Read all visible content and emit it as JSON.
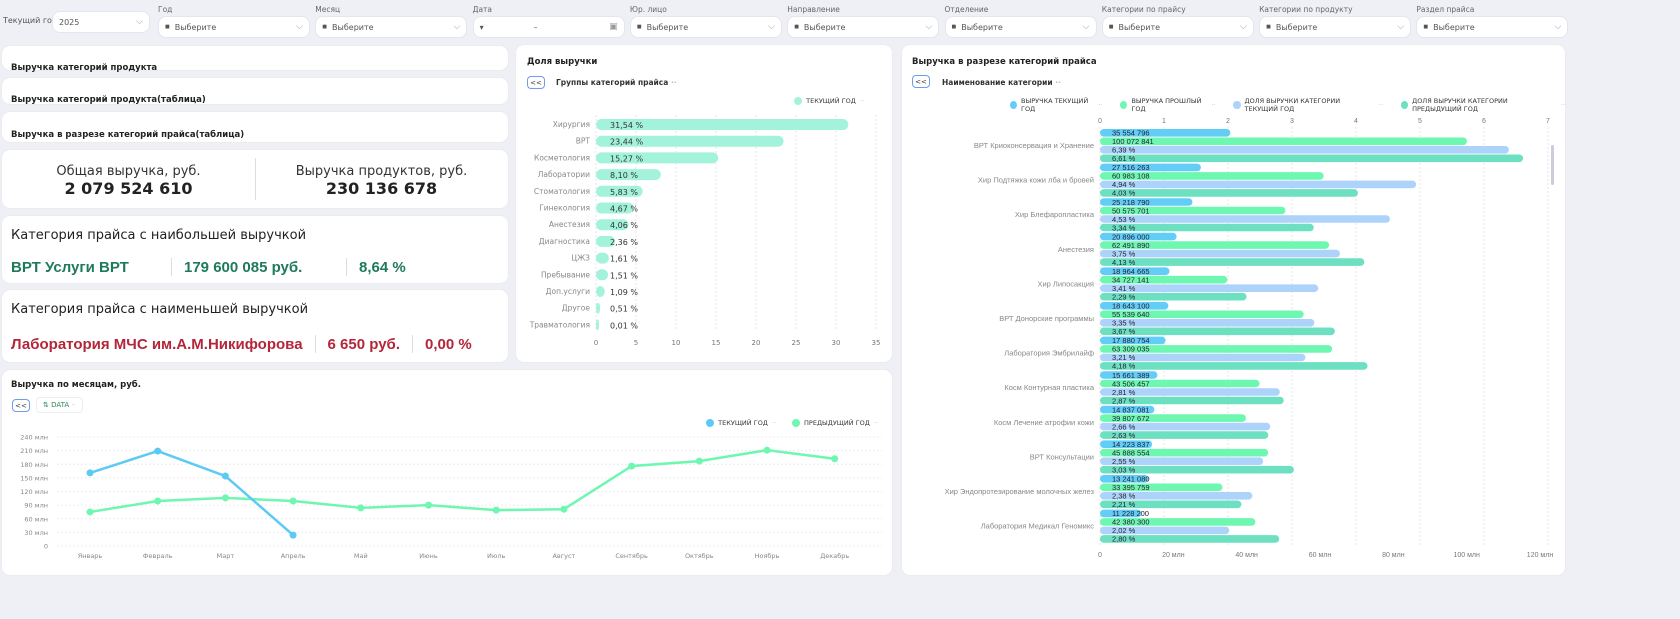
{
  "filters": {
    "current_year_label": "Текущий год",
    "current_year_value": "2025",
    "items": [
      {
        "label": "Год",
        "value": "Выберите"
      },
      {
        "label": "Месяц",
        "value": "Выберите"
      },
      {
        "label": "Дата",
        "value": "–"
      },
      {
        "label": "Юр. лицо",
        "value": "Выберите"
      },
      {
        "label": "Направление",
        "value": "Выберите"
      },
      {
        "label": "Отделение",
        "value": "Выберите"
      },
      {
        "label": "Категории по прайсу",
        "value": "Выберите"
      },
      {
        "label": "Категории по продукту",
        "value": "Выберите"
      },
      {
        "label": "Раздел прайса",
        "value": "Выберите"
      }
    ]
  },
  "left": {
    "sections": [
      "Выручка категорий продукта",
      "Выручка категорий продукта(таблица)",
      "Выручка в разрезе категорий прайса(таблица)"
    ],
    "total_label": "Общая выручка, руб.",
    "total_value": "2 079 524 610",
    "products_label": "Выручка продуктов, руб.",
    "products_value": "230 136 678",
    "max": {
      "title": "Категория прайса с наибольшей выручкой",
      "name": "ВРТ Услуги ВРТ",
      "revenue": "179 600 085 руб.",
      "share": "8,64 %",
      "color": "#1f7a5a"
    },
    "min": {
      "title": "Категория прайса с наименьшей выручкой",
      "name": "Лаборатория МЧС им.А.М.Никифорова",
      "revenue": "6 650 руб.",
      "share": "0,00 %",
      "color": "#b3263a"
    }
  },
  "chart_data": [
    {
      "type": "bar",
      "title": "Доля выручки",
      "drill_label": "Группы категорий прайса",
      "back_label": "<<",
      "categories": [
        "Хирургия",
        "ВРТ",
        "Косметология",
        "Лаборатории",
        "Стоматология",
        "Гинекология",
        "Анестезия",
        "Диагностика",
        "ЦЖЗ",
        "Пребывание",
        "Доп.услуги",
        "Другое",
        "Травматология"
      ],
      "series": [
        {
          "name": "ТЕКУЩИЙ ГОД",
          "values": [
            31.54,
            23.44,
            15.27,
            8.1,
            5.83,
            4.67,
            4.06,
            2.36,
            1.61,
            1.51,
            1.09,
            0.51,
            0.01
          ],
          "labels": [
            "31,54 %",
            "23,44 %",
            "15,27 %",
            "8,10 %",
            "5,83 %",
            "4,67 %",
            "4,06 %",
            "2,36 %",
            "1,61 %",
            "1,51 %",
            "1,09 %",
            "0,51 %",
            "0,01 %"
          ],
          "color": "#a3f3dc"
        }
      ],
      "xlim": [
        0,
        35
      ],
      "xticks": [
        "0",
        "5",
        "10",
        "15",
        "20",
        "25",
        "30",
        "35"
      ],
      "grid": true,
      "legend": "top-right"
    },
    {
      "type": "bar",
      "title": "Выручка в разрезе категорий прайса",
      "drill_label": "Наименование категории",
      "back_label": "<<",
      "categories": [
        "ВРТ Криоконсервация и Хранение",
        "Хир Подтяжка кожи лба и бровей",
        "Хир Блефаропластика",
        "Анестезия",
        "Хир Липосакция",
        "ВРТ Донорские программы",
        "Лаборатория Эмбрилайф",
        "Косм Контурная пластика",
        "Косм Лечение атрофии кожи",
        "ВРТ Консультации",
        "Хир Эндопротезирование молочных желез",
        "Лаборатория Медикал Геномикс"
      ],
      "series": [
        {
          "name": "ВЫРУЧКА ТЕКУЩИЙ ГОД",
          "axis": "bottom",
          "color": "#62cdf7",
          "values": [
            35554796,
            27516263,
            25218790,
            20896000,
            18964665,
            18643100,
            17880754,
            15661389,
            14837081,
            14223837,
            13241080,
            11228200
          ],
          "labels": [
            "35 554 796",
            "27 516 263",
            "25 218 790",
            "20 896 000",
            "18 964 665",
            "18 643 100",
            "17 880 754",
            "15 661 389",
            "14 837 081",
            "14 223 837",
            "13 241 080",
            "11 228 200"
          ]
        },
        {
          "name": "ВЫРУЧКА ПРОШЛЫЙ ГОД",
          "axis": "bottom",
          "color": "#6ef7b0",
          "values": [
            100072841,
            60983108,
            50575701,
            62491890,
            34727141,
            55539640,
            63309035,
            43506457,
            39807672,
            45888554,
            33395759,
            42380300
          ],
          "labels": [
            "100 072 841",
            "60 983 108",
            "50 575 701",
            "62 491 890",
            "34 727 141",
            "55 539 640",
            "63 309 035",
            "43 506 457",
            "39 807 672",
            "45 888 554",
            "33 395 759",
            "42 380 300"
          ]
        },
        {
          "name": "ДОЛЯ ВЫРУЧКИ КАТЕГОРИИ ТЕКУЩИЙ ГОД",
          "axis": "top",
          "color": "#aed3fb",
          "values": [
            6.39,
            4.94,
            4.53,
            3.75,
            3.41,
            3.35,
            3.21,
            2.81,
            2.66,
            2.55,
            2.38,
            2.02
          ],
          "labels": [
            "6,39 %",
            "4,94 %",
            "4,53 %",
            "3,75 %",
            "3,41 %",
            "3,35 %",
            "3,21 %",
            "2,81 %",
            "2,66 %",
            "2,55 %",
            "2,38 %",
            "2,02 %"
          ]
        },
        {
          "name": "ДОЛЯ ВЫРУЧКИ КАТЕГОРИИ ПРЕДЫДУЩИЙ ГОД",
          "axis": "top",
          "color": "#6ce0c0",
          "values": [
            6.61,
            4.03,
            3.34,
            4.13,
            2.29,
            3.67,
            4.18,
            2.87,
            2.63,
            3.03,
            2.21,
            2.8
          ],
          "labels": [
            "6,61 %",
            "4,03 %",
            "3,34 %",
            "4,13 %",
            "2,29 %",
            "3,67 %",
            "4,18 %",
            "2,87 %",
            "2,63 %",
            "3,03 %",
            "2,21 %",
            "2,80 %"
          ]
        }
      ],
      "top_axis": {
        "range": [
          0,
          7
        ],
        "ticks": [
          "0",
          "1",
          "2",
          "3",
          "4",
          "5",
          "6",
          "7"
        ]
      },
      "bottom_axis": {
        "range": [
          0,
          120000000
        ],
        "ticks": [
          "0",
          "20 млн",
          "40 млн",
          "60 млн",
          "80 млн",
          "100 млн",
          "120 млн"
        ]
      },
      "grid": true,
      "legend": "top"
    },
    {
      "type": "line",
      "title": "Выручка по месяцам, руб.",
      "back_label": "<<",
      "drill_label": "DATA",
      "categories": [
        "Январь",
        "Февраль",
        "Март",
        "Апрель",
        "Май",
        "Июнь",
        "Июль",
        "Август",
        "Сентябрь",
        "Октябрь",
        "Ноябрь",
        "Декабрь"
      ],
      "series": [
        {
          "name": "ТЕКУЩИЙ ГОД",
          "color": "#5ccaf5",
          "values": [
            161,
            209,
            154,
            24,
            null,
            null,
            null,
            null,
            null,
            null,
            null,
            null
          ]
        },
        {
          "name": "ПРЕДЫДУЩИЙ ГОД",
          "color": "#6ef7b0",
          "values": [
            75,
            99,
            106,
            99,
            84,
            90,
            79,
            81,
            176,
            187,
            211,
            192
          ]
        }
      ],
      "ylim": [
        0,
        240
      ],
      "yticks": [
        "0",
        "30 млн",
        "60 млн",
        "90 млн",
        "120 млн",
        "150 млн",
        "180 млн",
        "210 млн",
        "240 млн"
      ],
      "ylabel_unit": "млн",
      "grid": true,
      "legend": "top-right"
    }
  ]
}
